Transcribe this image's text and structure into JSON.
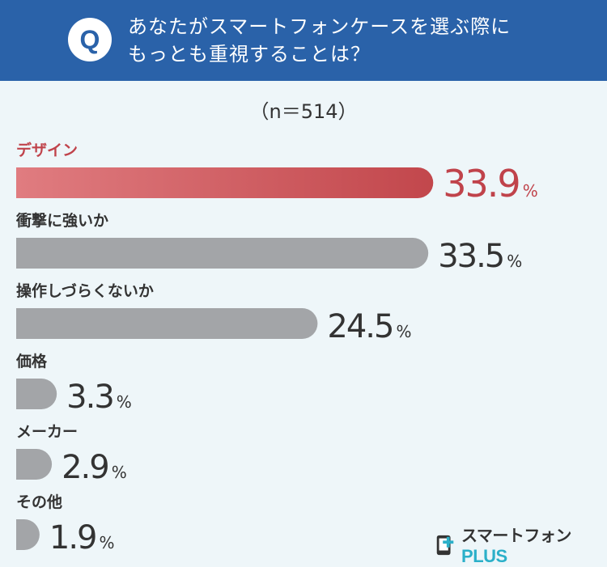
{
  "header": {
    "badge": "Q",
    "question": "あなたがスマートフォンケースを選ぶ際に\nもっとも重視することは？"
  },
  "sample_size": "（n＝514）",
  "chart_data": {
    "type": "bar",
    "orientation": "horizontal",
    "categories": [
      "デザイン",
      "衝撃に強いか",
      "操作しづらくないか",
      "価格",
      "メーカー",
      "その他"
    ],
    "values": [
      33.9,
      33.5,
      24.5,
      3.3,
      2.9,
      1.9
    ],
    "value_suffix": "%",
    "highlight_index": 0,
    "colors": {
      "highlight_start": "#e07c80",
      "highlight_end": "#c2474c",
      "highlight_text": "#c0434b",
      "default_bar": "#a3a5a8",
      "label_text": "#333333",
      "value_text": "#333333"
    }
  },
  "logo": {
    "icon": "smartphone-plus-logo-icon",
    "text_main": "スマートフォン",
    "text_plus": "PLUS"
  }
}
